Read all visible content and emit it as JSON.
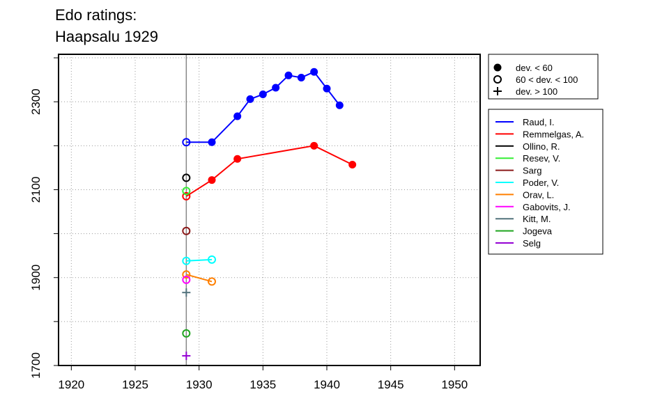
{
  "chart_data": {
    "type": "line",
    "title_lines": [
      "Edo ratings:",
      "Haapsalu 1929"
    ],
    "xlim": [
      1919,
      1952
    ],
    "ylim": [
      1700,
      2408
    ],
    "x_ticks": [
      1920,
      1925,
      1930,
      1935,
      1940,
      1945,
      1950
    ],
    "y_ticks": [
      1700,
      1900,
      2100,
      2300
    ],
    "grid": true,
    "event_year": 1929,
    "marker_legend": [
      {
        "symbol": "filled-circle",
        "label": "dev. < 60"
      },
      {
        "symbol": "open-circle",
        "label": "60 < dev. < 100"
      },
      {
        "symbol": "plus",
        "label": "dev. > 100"
      }
    ],
    "series": [
      {
        "name": "Raud, I.",
        "color": "#0000ff",
        "points": [
          {
            "x": 1929,
            "y": 2208,
            "m": "open"
          },
          {
            "x": 1931,
            "y": 2208,
            "m": "filled"
          },
          {
            "x": 1933,
            "y": 2267,
            "m": "filled"
          },
          {
            "x": 1934,
            "y": 2306,
            "m": "filled"
          },
          {
            "x": 1935,
            "y": 2317,
            "m": "filled"
          },
          {
            "x": 1936,
            "y": 2332,
            "m": "filled"
          },
          {
            "x": 1937,
            "y": 2360,
            "m": "filled"
          },
          {
            "x": 1938,
            "y": 2355,
            "m": "filled"
          },
          {
            "x": 1939,
            "y": 2368,
            "m": "filled"
          },
          {
            "x": 1940,
            "y": 2330,
            "m": "filled"
          },
          {
            "x": 1941,
            "y": 2292,
            "m": "filled"
          }
        ]
      },
      {
        "name": "Remmelgas, A.",
        "color": "#ff0000",
        "points": [
          {
            "x": 1929,
            "y": 2085,
            "m": "open"
          },
          {
            "x": 1931,
            "y": 2122,
            "m": "filled"
          },
          {
            "x": 1933,
            "y": 2170,
            "m": "filled"
          },
          {
            "x": 1939,
            "y": 2200,
            "m": "filled"
          },
          {
            "x": 1942,
            "y": 2157,
            "m": "filled"
          }
        ]
      },
      {
        "name": "Ollino, R.",
        "color": "#000000",
        "points": [
          {
            "x": 1929,
            "y": 2127,
            "m": "open"
          }
        ]
      },
      {
        "name": "Resev, V.",
        "color": "#33ee33",
        "points": [
          {
            "x": 1929,
            "y": 2097,
            "m": "open"
          }
        ]
      },
      {
        "name": "Sarg",
        "color": "#8b1a1a",
        "points": [
          {
            "x": 1929,
            "y": 2006,
            "m": "open"
          }
        ]
      },
      {
        "name": "Poder, V.",
        "color": "#00ffff",
        "points": [
          {
            "x": 1929,
            "y": 1938,
            "m": "open"
          },
          {
            "x": 1931,
            "y": 1941,
            "m": "open"
          }
        ]
      },
      {
        "name": "Orav, L.",
        "color": "#ff7f00",
        "points": [
          {
            "x": 1929,
            "y": 1907,
            "m": "open"
          },
          {
            "x": 1931,
            "y": 1891,
            "m": "open"
          }
        ]
      },
      {
        "name": "Gabovits, J.",
        "color": "#ff00ff",
        "points": [
          {
            "x": 1929,
            "y": 1895,
            "m": "open"
          }
        ]
      },
      {
        "name": "Kitt, M.",
        "color": "#52727c",
        "points": [
          {
            "x": 1929,
            "y": 1866,
            "m": "plus"
          }
        ]
      },
      {
        "name": "Jogeva",
        "color": "#1ea51e",
        "points": [
          {
            "x": 1929,
            "y": 1773,
            "m": "open"
          }
        ]
      },
      {
        "name": "Selg",
        "color": "#9400d3",
        "points": [
          {
            "x": 1929,
            "y": 1722,
            "m": "plus"
          }
        ]
      }
    ]
  }
}
